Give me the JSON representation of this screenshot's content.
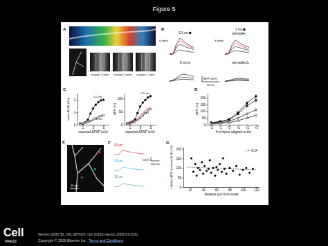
{
  "page": {
    "title": "Figure 5",
    "citation": "Neuron 2006 50, 291-307DOI: (10.1016/j.neuron.2006.03.016)",
    "copyright": "Copyright © 2006 Elsevier Inc.",
    "links": [
      "Terms and Conditions"
    ],
    "logo": [
      "Cell",
      "PRESS"
    ]
  },
  "images": [
    {
      "panel": "A",
      "captions": [
        "uncaging 1-3 spines",
        "uncaging 1-4 spines",
        "uncaging 1-7 spines"
      ]
    },
    {
      "panel": "E",
      "scale_label": "10 μm"
    }
  ],
  "chart_data": [
    {
      "type": "line",
      "panel": "C",
      "x": [
        0.5,
        1,
        1.5,
        2,
        2.5,
        3,
        3.5,
        4,
        4.5,
        5
      ],
      "xlim": [
        0,
        6
      ],
      "xticks": [
        1,
        3,
        5
      ],
      "ylim": [
        0,
        2.5
      ],
      "yticks": [
        0,
        1,
        2
      ],
      "x_label": "expected EPSP (mV)",
      "y_label": "soma ΔV/Δt (V/s)",
      "series": [
        {
          "name": "0.1 ms",
          "color": "#000000",
          "marker": "circle-filled",
          "line_style": "solid",
          "values": [
            0.1,
            0.1,
            0.2,
            0.4,
            0.9,
            1.3,
            1.6,
            1.8,
            1.95,
            2.0
          ]
        },
        {
          "name": "5 ms",
          "color": "#000000",
          "marker": "square-open",
          "line_style": "solid",
          "values": [
            0.05,
            0.1,
            0.15,
            0.2,
            0.3,
            0.4,
            0.5,
            0.6,
            0.7,
            0.75
          ]
        }
      ]
    },
    {
      "type": "line",
      "x": [
        0.5,
        1,
        1.5,
        2,
        2.5,
        3,
        3.5,
        4,
        4.5,
        5
      ],
      "xlim": [
        0,
        6
      ],
      "xticks": [
        1,
        3,
        5
      ],
      "ylim": [
        0,
        120
      ],
      "yticks": [
        0,
        50,
        100
      ],
      "x_label": "expected EPSP (mV)",
      "y_label": "ΔF/F (%)",
      "series": [
        {
          "name": "0.1 ms",
          "color": "#000000",
          "marker": "circle-filled",
          "line_style": "solid",
          "values": [
            5,
            8,
            12,
            20,
            45,
            70,
            85,
            95,
            105,
            110
          ]
        },
        {
          "name": "5 ms",
          "color": "#000000",
          "marker": "square-open",
          "line_style": "solid",
          "values": [
            3,
            5,
            8,
            12,
            18,
            25,
            35,
            45,
            55,
            60
          ]
        },
        {
          "color": "#e0202a",
          "line_style": "solid",
          "values": [
            4,
            6,
            10,
            15,
            25,
            35,
            45,
            55,
            62,
            68
          ]
        }
      ]
    },
    {
      "type": "line",
      "panel": "D",
      "categories": [
        "-2",
        "-1",
        "0",
        "+1",
        "+2",
        "+3"
      ],
      "ylim": [
        0,
        230
      ],
      "yticks": [
        0,
        50,
        100,
        150,
        200
      ],
      "x_label": "# of inputs (aligned to thr)",
      "y_label": "ΔF/F (%)",
      "series": [
        {
          "color": "#000000",
          "marker": "circle-filled",
          "line_style": "solid",
          "values": [
            15,
            25,
            40,
            90,
            160,
            210
          ],
          "errors": [
            4,
            5,
            8,
            10,
            14,
            15
          ]
        },
        {
          "color": "#000000",
          "marker": "triangle-filled",
          "line_style": "solid",
          "values": [
            15,
            20,
            35,
            80,
            140,
            180
          ],
          "errors": [
            4,
            5,
            7,
            9,
            12,
            14
          ]
        },
        {
          "color": "#000000",
          "marker": "square-open",
          "line_style": "solid",
          "values": [
            10,
            15,
            25,
            50,
            80,
            110
          ],
          "errors": [
            3,
            4,
            5,
            7,
            9,
            11
          ]
        },
        {
          "color": "#000000",
          "marker": "triangle-open",
          "line_style": "solid",
          "values": [
            5,
            10,
            15,
            30,
            50,
            70
          ],
          "errors": [
            3,
            3,
            4,
            5,
            7,
            8
          ]
        }
      ]
    },
    {
      "type": "scatter",
      "panel": "G",
      "x": [
        22,
        25,
        28,
        30,
        32,
        35,
        38,
        40,
        42,
        45,
        48,
        50,
        52,
        55,
        58,
        60,
        62,
        65,
        68,
        70,
        72,
        75,
        80,
        85,
        90,
        95,
        100,
        105,
        110,
        115
      ],
      "xlim": [
        10,
        125
      ],
      "xticks": [
        20,
        40,
        60,
        80,
        100,
        120
      ],
      "ylim": [
        0,
        210
      ],
      "yticks": [
        0,
        50,
        100,
        150,
        200
      ],
      "x_label": "distance (μm from trunk)",
      "y_label": "relative ΔF/F increase @ thr (%)",
      "annotations": [
        "r = -0.14"
      ],
      "series": [
        {
          "color": "#000000",
          "marker": "circle-filled",
          "values": [
            150,
            80,
            120,
            60,
            100,
            90,
            130,
            70,
            110,
            85,
            95,
            140,
            75,
            100,
            60,
            105,
            90,
            120,
            80,
            150,
            95,
            70,
            100,
            85,
            110,
            65,
            90,
            100,
            75,
            95
          ]
        }
      ],
      "fit": {
        "x": [
          15,
          120
        ],
        "values": [
          105,
          90
        ]
      }
    },
    {
      "type": "line",
      "panel": "B",
      "title": "0.1 ms",
      "marker": "circle-filled",
      "annotations": [
        "d-spike"
      ],
      "tick_labels": false,
      "x": [
        0,
        10,
        20,
        30,
        40,
        50,
        60,
        70
      ],
      "xlim": [
        0,
        80
      ],
      "ylim": [
        -20,
        260
      ],
      "series": [
        {
          "color": "#000000",
          "values": [
            0,
            2,
            150,
            230,
            190,
            150,
            120,
            100
          ]
        },
        {
          "color": "#000000",
          "values": [
            0,
            2,
            90,
            140,
            120,
            95,
            80,
            65
          ]
        },
        {
          "color": "#000000",
          "values": [
            0,
            1,
            40,
            60,
            50,
            40,
            32,
            25
          ]
        },
        {
          "color": "#e0202a",
          "values": [
            0,
            3,
            120,
            190,
            160,
            125,
            100,
            85
          ]
        }
      ]
    },
    {
      "type": "line",
      "title": "1 ms",
      "subtitle": "w/d-spike",
      "marker": "triangle-filled",
      "annotations": [
        "d-spike"
      ],
      "tick_labels": false,
      "x": [
        0,
        10,
        20,
        30,
        40,
        50,
        60,
        70
      ],
      "xlim": [
        0,
        80
      ],
      "ylim": [
        -20,
        260
      ],
      "series": [
        {
          "color": "#000000",
          "values": [
            0,
            5,
            130,
            200,
            170,
            140,
            115,
            95
          ]
        },
        {
          "color": "#000000",
          "values": [
            0,
            3,
            70,
            110,
            95,
            80,
            65,
            55
          ]
        },
        {
          "color": "#000000",
          "values": [
            0,
            2,
            35,
            50,
            42,
            35,
            28,
            22
          ]
        },
        {
          "color": "#e0202a",
          "values": [
            0,
            4,
            100,
            160,
            135,
            110,
            90,
            75
          ]
        }
      ]
    },
    {
      "type": "line",
      "title": "5 ms",
      "marker": "square-open",
      "tick_labels": false,
      "x": [
        0,
        10,
        20,
        30,
        40,
        50,
        60,
        70
      ],
      "xlim": [
        0,
        80
      ],
      "ylim": [
        -20,
        260
      ],
      "scale_bar": {
        "x": 50,
        "x_label": "50 ms",
        "y": 100,
        "y_label": "ΔF/F 100%"
      },
      "series": [
        {
          "color": "#000000",
          "values": [
            0,
            20,
            60,
            100,
            120,
            110,
            95,
            80
          ]
        },
        {
          "color": "#000000",
          "values": [
            0,
            15,
            40,
            60,
            70,
            65,
            55,
            48
          ]
        },
        {
          "color": "#000000",
          "values": [
            0,
            8,
            20,
            30,
            35,
            32,
            28,
            24
          ]
        }
      ]
    },
    {
      "type": "line",
      "title": "w/o-spike",
      "marker": "triangle-open",
      "tick_labels": false,
      "x": [
        0,
        10,
        20,
        30,
        40,
        50,
        60,
        70
      ],
      "xlim": [
        0,
        80
      ],
      "ylim": [
        -20,
        260
      ],
      "series": [
        {
          "color": "#000000",
          "values": [
            0,
            10,
            30,
            45,
            50,
            45,
            40,
            35
          ]
        },
        {
          "color": "#000000",
          "values": [
            0,
            6,
            18,
            28,
            30,
            28,
            24,
            20
          ]
        },
        {
          "color": "#000000",
          "values": [
            0,
            3,
            8,
            12,
            14,
            12,
            10,
            9
          ]
        }
      ]
    },
    {
      "type": "line",
      "panel": "F",
      "title": "90 μm",
      "tick_labels": false,
      "x": [
        0,
        50,
        100,
        150,
        200,
        250,
        300,
        350
      ],
      "xlim": [
        0,
        400
      ],
      "ylim": [
        -50,
        200
      ],
      "scale_bar": {
        "x": 100,
        "x_label": "100 ms",
        "y": 100,
        "y_label": "100%"
      },
      "series": [
        {
          "color": "#e0202a",
          "values": [
            0,
            5,
            150,
            110,
            80,
            60,
            45,
            30
          ]
        }
      ]
    },
    {
      "type": "line",
      "title": "40 μm",
      "tick_labels": false,
      "x": [
        0,
        50,
        100,
        150,
        200,
        250,
        300,
        350
      ],
      "xlim": [
        0,
        400
      ],
      "ylim": [
        -50,
        200
      ],
      "series": [
        {
          "color": "#22a9d6",
          "values": [
            0,
            -5,
            120,
            90,
            70,
            50,
            40,
            25
          ]
        }
      ]
    },
    {
      "type": "line",
      "title": "25 μm",
      "tick_labels": false,
      "x": [
        0,
        50,
        100,
        150,
        200,
        250,
        300,
        350
      ],
      "xlim": [
        0,
        400
      ],
      "ylim": [
        -50,
        200
      ],
      "series": [
        {
          "color": "#3aa04a",
          "values": [
            0,
            3,
            100,
            75,
            55,
            40,
            30,
            20
          ]
        }
      ]
    }
  ]
}
